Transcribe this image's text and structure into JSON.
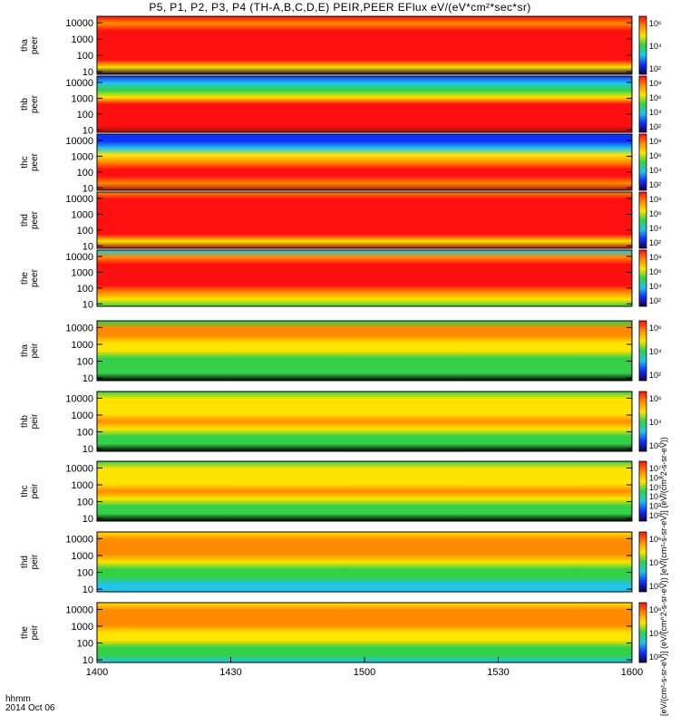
{
  "title": "P5, P1, P2, P3, P4 (TH-A,B,C,D,E) PEIR,PEER EFlux eV/(eV*cm²*sec*sr)",
  "footer": {
    "time_label": "hhmm",
    "date_label": "2014 Oct 06"
  },
  "colorbar_units": "[eV/(cm²-s-sr-eV)] (eV/(cm^2-s-sr-eV)) [eV/(cm²-s-sr-eV)] (eV/(cm^2-s-sr-eV))",
  "colors": {
    "red": "#ff1010",
    "orange": "#ff8c00",
    "yellow": "#ffe400",
    "green": "#34d04a",
    "cyan": "#22c4e8",
    "blue": "#1030ff",
    "navy": "#100040",
    "black": "#000000",
    "darkred": "#a01010"
  },
  "chart_data": {
    "type": "heatmap",
    "xlim": [
      "1400",
      "1600"
    ],
    "xticks": [
      "1400",
      "1430",
      "1500",
      "1530",
      "1600"
    ],
    "yscale": "log",
    "ylim": [
      7,
      25000
    ],
    "yticks": [
      "10",
      "100",
      "1000",
      "10000"
    ],
    "panels": [
      {
        "probe": "tha",
        "species": "peer",
        "colorbar": [
          "10⁶",
          "10⁴",
          "10²"
        ],
        "profile": [
          "navy",
          "yellow",
          "red",
          "red",
          "red",
          "red",
          "red",
          "orange",
          "red"
        ]
      },
      {
        "probe": "thb",
        "species": "peer",
        "colorbar": [
          "10⁸",
          "10⁶",
          "10⁴",
          "10²"
        ],
        "profile": [
          "darkred",
          "red",
          "red",
          "red",
          "red",
          "yellow",
          "green",
          "cyan",
          "blue"
        ]
      },
      {
        "probe": "thc",
        "species": "peer",
        "colorbar": [
          "10⁸",
          "10⁶",
          "10⁴",
          "10²"
        ],
        "profile": [
          "darkred",
          "orange",
          "red",
          "red",
          "orange",
          "yellow",
          "cyan",
          "blue",
          "blue"
        ]
      },
      {
        "probe": "thd",
        "species": "peer",
        "colorbar": [
          "10⁸",
          "10⁶",
          "10⁴",
          "10²"
        ],
        "profile": [
          "darkred",
          "yellow",
          "red",
          "red",
          "red",
          "red",
          "red",
          "red",
          "orange"
        ]
      },
      {
        "probe": "the",
        "species": "peer",
        "colorbar": [
          "10⁸",
          "10⁶",
          "10⁴",
          "10²"
        ],
        "profile": [
          "green",
          "yellow",
          "orange",
          "red",
          "red",
          "red",
          "red",
          "orange",
          "cyan"
        ]
      },
      {
        "probe": "tha",
        "species": "peir",
        "colorbar": [
          "10⁶",
          "10⁴",
          "10²"
        ],
        "profile": [
          "black",
          "green",
          "green",
          "green",
          "yellow",
          "yellow",
          "orange",
          "orange",
          "green"
        ]
      },
      {
        "probe": "thb",
        "species": "peir",
        "colorbar": [
          "10⁶",
          "10⁴",
          "10²"
        ],
        "profile": [
          "black",
          "green",
          "green",
          "yellow",
          "orange",
          "yellow",
          "yellow",
          "yellow",
          "green"
        ]
      },
      {
        "probe": "thc",
        "species": "peir",
        "colorbar": [
          "10⁷",
          "10⁶",
          "10⁵",
          "10⁴",
          "10³",
          "10²"
        ],
        "profile": [
          "black",
          "green",
          "green",
          "yellow",
          "orange",
          "yellow",
          "yellow",
          "yellow",
          "green"
        ]
      },
      {
        "probe": "thd",
        "species": "peir",
        "colorbar": [
          "10⁶",
          "10⁴",
          "10²"
        ],
        "profile": [
          "cyan",
          "cyan",
          "green",
          "green",
          "yellow",
          "orange",
          "orange",
          "orange",
          "yellow"
        ]
      },
      {
        "probe": "the",
        "species": "peir",
        "colorbar": [
          "10⁶",
          "10⁴",
          "10²"
        ],
        "profile": [
          "cyan",
          "green",
          "green",
          "yellow",
          "yellow",
          "orange",
          "orange",
          "orange",
          "yellow"
        ]
      }
    ]
  }
}
